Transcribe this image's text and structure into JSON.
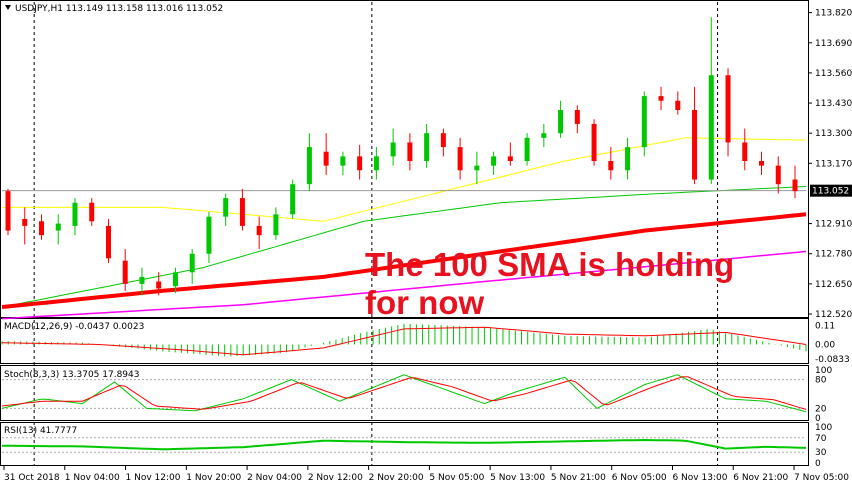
{
  "chart_data": {
    "type": "candlestick",
    "symbol_header": "USDJPY,H1  113.149 113.158 113.016 113.052",
    "current_price": "113.052",
    "annotation": [
      "The 100 SMA is holding",
      "for now"
    ],
    "colors": {
      "bull": "#00c800",
      "bear": "#ff0000",
      "sma_fast": "#ffff00",
      "sma_mid": "#00c800",
      "sma_100": "#ff0000",
      "sma_slow": "#ff00ff",
      "macd_hist": "#00c800",
      "macd_signal": "#ff0000",
      "stoch_main": "#00c800",
      "stoch_signal": "#ff0000",
      "rsi": "#00c800",
      "price_box": "#000000"
    },
    "price_axis": {
      "ticks": [
        "113.820",
        "113.690",
        "113.560",
        "113.430",
        "113.300",
        "113.170",
        "113.052",
        "112.910",
        "112.780",
        "112.650",
        "112.520"
      ],
      "range": [
        112.52,
        113.84
      ]
    },
    "time_axis": [
      "31 Oct 2018",
      "1 Nov 04:00",
      "1 Nov 12:00",
      "1 Nov 20:00",
      "2 Nov 04:00",
      "2 Nov 12:00",
      "2 Nov 20:00",
      "5 Nov 05:00",
      "5 Nov 13:00",
      "5 Nov 21:00",
      "6 Nov 05:00",
      "6 Nov 13:00",
      "6 Nov 21:00",
      "7 Nov 05:00"
    ],
    "ohlc_anchors": [
      [
        113.05,
        113.06,
        112.86,
        112.88
      ],
      [
        112.93,
        112.98,
        112.82,
        112.9
      ],
      [
        112.92,
        112.95,
        112.84,
        112.86
      ],
      [
        112.88,
        112.95,
        112.82,
        112.91
      ],
      [
        112.9,
        113.02,
        112.86,
        113.0
      ],
      [
        113.0,
        113.02,
        112.9,
        112.92
      ],
      [
        112.9,
        112.93,
        112.74,
        112.76
      ],
      [
        112.75,
        112.8,
        112.62,
        112.65
      ],
      [
        112.65,
        112.72,
        112.6,
        112.68
      ],
      [
        112.66,
        112.7,
        112.6,
        112.63
      ],
      [
        112.64,
        112.72,
        112.61,
        112.7
      ],
      [
        112.7,
        112.8,
        112.65,
        112.78
      ],
      [
        112.78,
        112.96,
        112.74,
        112.94
      ],
      [
        112.94,
        113.04,
        112.9,
        113.02
      ],
      [
        113.02,
        113.06,
        112.88,
        112.9
      ],
      [
        112.9,
        112.94,
        112.8,
        112.86
      ],
      [
        112.86,
        112.98,
        112.84,
        112.95
      ],
      [
        112.95,
        113.1,
        112.93,
        113.08
      ],
      [
        113.08,
        113.3,
        113.05,
        113.24
      ],
      [
        113.22,
        113.3,
        113.12,
        113.16
      ],
      [
        113.16,
        113.22,
        113.12,
        113.2
      ],
      [
        113.2,
        113.25,
        113.1,
        113.14
      ],
      [
        113.14,
        113.24,
        113.1,
        113.2
      ],
      [
        113.2,
        113.32,
        113.16,
        113.26
      ],
      [
        113.26,
        113.3,
        113.14,
        113.18
      ],
      [
        113.18,
        113.34,
        113.15,
        113.3
      ],
      [
        113.3,
        113.32,
        113.2,
        113.24
      ],
      [
        113.24,
        113.28,
        113.1,
        113.14
      ],
      [
        113.14,
        113.22,
        113.08,
        113.16
      ],
      [
        113.16,
        113.22,
        113.12,
        113.2
      ],
      [
        113.2,
        113.26,
        113.16,
        113.18
      ],
      [
        113.18,
        113.3,
        113.16,
        113.28
      ],
      [
        113.28,
        113.34,
        113.24,
        113.3
      ],
      [
        113.3,
        113.44,
        113.28,
        113.4
      ],
      [
        113.4,
        113.42,
        113.3,
        113.34
      ],
      [
        113.34,
        113.36,
        113.16,
        113.18
      ],
      [
        113.18,
        113.24,
        113.1,
        113.14
      ],
      [
        113.14,
        113.28,
        113.1,
        113.24
      ],
      [
        113.24,
        113.48,
        113.2,
        113.46
      ],
      [
        113.46,
        113.5,
        113.4,
        113.44
      ],
      [
        113.44,
        113.48,
        113.38,
        113.4
      ],
      [
        113.4,
        113.5,
        113.08,
        113.1
      ],
      [
        113.1,
        113.8,
        113.08,
        113.55
      ],
      [
        113.55,
        113.58,
        113.2,
        113.26
      ],
      [
        113.26,
        113.32,
        113.14,
        113.18
      ],
      [
        113.18,
        113.22,
        113.12,
        113.16
      ],
      [
        113.16,
        113.2,
        113.04,
        113.08
      ],
      [
        113.1,
        113.16,
        113.02,
        113.05
      ]
    ],
    "moving_averages": [
      {
        "name": "sma_fast",
        "x": [
          0,
          0.2,
          0.4,
          0.55,
          0.7,
          0.85,
          1.0
        ],
        "y": [
          112.98,
          112.98,
          112.92,
          113.05,
          113.18,
          113.28,
          113.27
        ]
      },
      {
        "name": "sma_mid",
        "x": [
          0,
          0.25,
          0.45,
          0.62,
          0.82,
          1.0
        ],
        "y": [
          112.55,
          112.72,
          112.92,
          113.0,
          113.04,
          113.07
        ]
      },
      {
        "name": "sma_100",
        "x": [
          0,
          0.2,
          0.4,
          0.6,
          0.8,
          1.0
        ],
        "y": [
          112.55,
          112.62,
          112.68,
          112.78,
          112.88,
          112.95
        ]
      },
      {
        "name": "sma_slow",
        "x": [
          0,
          0.3,
          0.6,
          0.85,
          1.0
        ],
        "y": [
          112.5,
          112.56,
          112.66,
          112.74,
          112.79
        ]
      }
    ],
    "macd": {
      "label": "MACD(12,26,9) -0.0437 0.0023",
      "ticks": [
        "0.11",
        "0.00",
        "-0.0833"
      ],
      "range": [
        -0.09,
        0.13
      ],
      "main_anchors": [
        [
          0,
          0.02
        ],
        [
          0.1,
          0.01
        ],
        [
          0.2,
          -0.04
        ],
        [
          0.28,
          -0.07
        ],
        [
          0.35,
          -0.05
        ],
        [
          0.45,
          0.07
        ],
        [
          0.5,
          0.12
        ],
        [
          0.6,
          0.1
        ],
        [
          0.7,
          0.05
        ],
        [
          0.8,
          0.04
        ],
        [
          0.88,
          0.09
        ],
        [
          1.0,
          -0.04
        ]
      ],
      "signal_anchors": [
        [
          0,
          0.01
        ],
        [
          0.12,
          0.0
        ],
        [
          0.22,
          -0.03
        ],
        [
          0.3,
          -0.06
        ],
        [
          0.4,
          -0.02
        ],
        [
          0.5,
          0.09
        ],
        [
          0.6,
          0.1
        ],
        [
          0.7,
          0.06
        ],
        [
          0.8,
          0.05
        ],
        [
          0.9,
          0.07
        ],
        [
          1.0,
          0.0
        ]
      ]
    },
    "stoch": {
      "label": "Stoch(8,3,3) 13.3705 17.8943",
      "ticks": [
        "100",
        "80",
        "20",
        "0"
      ],
      "range": [
        0,
        100
      ],
      "main_anchors": [
        [
          0,
          20
        ],
        [
          0.05,
          40
        ],
        [
          0.1,
          30
        ],
        [
          0.14,
          75
        ],
        [
          0.18,
          20
        ],
        [
          0.24,
          15
        ],
        [
          0.3,
          40
        ],
        [
          0.36,
          80
        ],
        [
          0.42,
          35
        ],
        [
          0.5,
          90
        ],
        [
          0.55,
          60
        ],
        [
          0.6,
          30
        ],
        [
          0.64,
          55
        ],
        [
          0.7,
          85
        ],
        [
          0.74,
          20
        ],
        [
          0.8,
          70
        ],
        [
          0.84,
          90
        ],
        [
          0.9,
          40
        ],
        [
          0.95,
          35
        ],
        [
          1.0,
          13
        ]
      ],
      "signal_anchors": [
        [
          0,
          25
        ],
        [
          0.05,
          35
        ],
        [
          0.1,
          35
        ],
        [
          0.15,
          70
        ],
        [
          0.19,
          25
        ],
        [
          0.25,
          18
        ],
        [
          0.31,
          35
        ],
        [
          0.37,
          75
        ],
        [
          0.43,
          40
        ],
        [
          0.51,
          85
        ],
        [
          0.56,
          65
        ],
        [
          0.61,
          35
        ],
        [
          0.65,
          50
        ],
        [
          0.71,
          80
        ],
        [
          0.75,
          25
        ],
        [
          0.81,
          65
        ],
        [
          0.85,
          88
        ],
        [
          0.91,
          45
        ],
        [
          0.96,
          38
        ],
        [
          1.0,
          18
        ]
      ]
    },
    "rsi": {
      "label": "RSI(13) 41.7777",
      "ticks": [
        "100",
        "70",
        "30",
        "0"
      ],
      "range": [
        0,
        100
      ],
      "anchors": [
        [
          0,
          48
        ],
        [
          0.1,
          46
        ],
        [
          0.2,
          38
        ],
        [
          0.3,
          44
        ],
        [
          0.4,
          62
        ],
        [
          0.5,
          58
        ],
        [
          0.6,
          56
        ],
        [
          0.7,
          60
        ],
        [
          0.8,
          64
        ],
        [
          0.85,
          62
        ],
        [
          0.9,
          40
        ],
        [
          0.95,
          45
        ],
        [
          1.0,
          42
        ]
      ]
    }
  }
}
